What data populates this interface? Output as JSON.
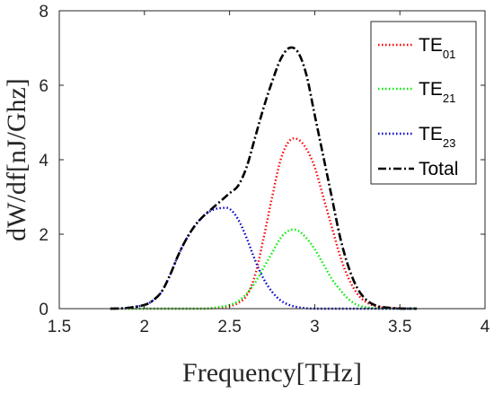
{
  "chart_data": {
    "type": "line",
    "title": "",
    "xlabel": "Frequency[THz]",
    "ylabel": "dW/df[nJ/Ghz]",
    "xlim": [
      1.5,
      4
    ],
    "ylim": [
      0,
      8
    ],
    "xticks": [
      "1.5",
      "2",
      "2.5",
      "3",
      "3.5",
      "4"
    ],
    "yticks": [
      "0",
      "2",
      "4",
      "6",
      "8"
    ],
    "grid": false,
    "legend_position": "top-right",
    "x": [
      1.8,
      1.9,
      2.0,
      2.05,
      2.1,
      2.15,
      2.2,
      2.25,
      2.3,
      2.35,
      2.4,
      2.45,
      2.5,
      2.55,
      2.6,
      2.65,
      2.7,
      2.75,
      2.8,
      2.85,
      2.9,
      2.95,
      3.0,
      3.05,
      3.1,
      3.15,
      3.2,
      3.25,
      3.3,
      3.35,
      3.4,
      3.5,
      3.6
    ],
    "series": [
      {
        "base": "TE",
        "sub": "01",
        "color": "#ff0000",
        "values": [
          0,
          0,
          0,
          0,
          0,
          0,
          0,
          0,
          0,
          0,
          0.01,
          0.03,
          0.07,
          0.15,
          0.35,
          0.9,
          1.9,
          3.0,
          4.0,
          4.5,
          4.55,
          4.3,
          3.8,
          3.0,
          2.2,
          1.4,
          0.8,
          0.4,
          0.18,
          0.08,
          0.03,
          0.005,
          0
        ]
      },
      {
        "base": "TE",
        "sub": "21",
        "color": "#00ee00",
        "values": [
          0,
          0,
          0,
          0,
          0,
          0,
          0,
          0,
          0,
          0,
          0.02,
          0.05,
          0.1,
          0.2,
          0.4,
          0.7,
          1.1,
          1.5,
          1.9,
          2.1,
          2.1,
          1.9,
          1.6,
          1.2,
          0.8,
          0.5,
          0.25,
          0.1,
          0.04,
          0.01,
          0,
          0,
          0
        ]
      },
      {
        "base": "TE",
        "sub": "23",
        "color": "#0000cc",
        "values": [
          0,
          0.02,
          0.1,
          0.22,
          0.45,
          0.9,
          1.45,
          1.9,
          2.25,
          2.5,
          2.65,
          2.7,
          2.68,
          2.4,
          1.9,
          1.3,
          0.8,
          0.45,
          0.22,
          0.1,
          0.04,
          0.01,
          0,
          0,
          0,
          0,
          0,
          0,
          0,
          0,
          0,
          0,
          0
        ]
      },
      {
        "base": "Total",
        "sub": "",
        "color": "#000000",
        "values": [
          0,
          0.02,
          0.1,
          0.22,
          0.45,
          0.9,
          1.45,
          1.9,
          2.25,
          2.5,
          2.7,
          2.9,
          3.1,
          3.3,
          3.8,
          4.6,
          5.4,
          6.1,
          6.7,
          7.0,
          6.9,
          6.3,
          5.2,
          4.1,
          3.0,
          1.9,
          1.1,
          0.55,
          0.25,
          0.1,
          0.04,
          0.005,
          0
        ]
      }
    ]
  }
}
